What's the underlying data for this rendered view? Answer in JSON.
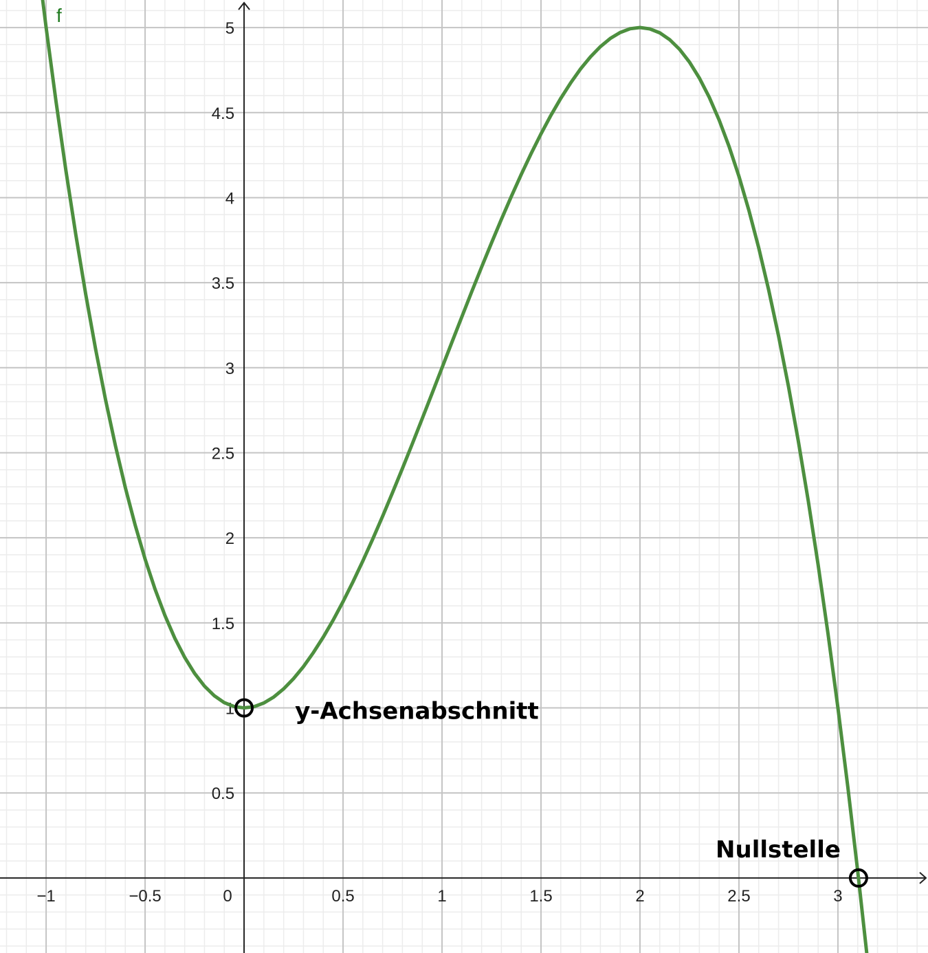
{
  "chart_data": {
    "type": "line",
    "x": [
      -1.05,
      -1,
      -0.95,
      -0.9,
      -0.85,
      -0.8,
      -0.75,
      -0.7,
      -0.65,
      -0.6,
      -0.55,
      -0.5,
      -0.45,
      -0.4,
      -0.35,
      -0.3,
      -0.25,
      -0.2,
      -0.15,
      -0.1,
      -0.05,
      0,
      0.05,
      0.1,
      0.15,
      0.2,
      0.25,
      0.3,
      0.35,
      0.4,
      0.45,
      0.5,
      0.55,
      0.6,
      0.65,
      0.7,
      0.75,
      0.8,
      0.85,
      0.9,
      0.95,
      1,
      1.05,
      1.1,
      1.15,
      1.2,
      1.25,
      1.3,
      1.35,
      1.4,
      1.45,
      1.5,
      1.55,
      1.6,
      1.65,
      1.7,
      1.75,
      1.8,
      1.85,
      1.9,
      1.95,
      2,
      2.05,
      2.1,
      2.15,
      2.2,
      2.25,
      2.3,
      2.35,
      2.4,
      2.45,
      2.5,
      2.55,
      2.6,
      2.65,
      2.7,
      2.75,
      2.8,
      2.85,
      2.9,
      2.95,
      3,
      3.05,
      3.1,
      3.15
    ],
    "series": [
      {
        "name": "f",
        "color": "#4d8f3f",
        "values": [
          5.465,
          5,
          4.565,
          4.159,
          3.782,
          3.432,
          3.109,
          2.813,
          2.542,
          2.296,
          2.074,
          1.875,
          1.699,
          1.544,
          1.41,
          1.297,
          1.203,
          1.128,
          1.071,
          1.031,
          1.008,
          1,
          1.007,
          1.029,
          1.064,
          1.112,
          1.172,
          1.243,
          1.325,
          1.416,
          1.516,
          1.625,
          1.741,
          1.864,
          1.993,
          2.127,
          2.266,
          2.408,
          2.553,
          2.701,
          2.85,
          3,
          3.15,
          3.299,
          3.447,
          3.592,
          3.734,
          3.873,
          4.007,
          4.136,
          4.259,
          4.375,
          4.484,
          4.584,
          4.675,
          4.757,
          4.828,
          4.888,
          4.936,
          4.971,
          4.993,
          5,
          4.992,
          4.969,
          4.929,
          4.872,
          4.797,
          4.703,
          4.59,
          4.456,
          4.301,
          4.125,
          3.926,
          3.704,
          3.458,
          3.187,
          2.891,
          2.568,
          2.218,
          1.841,
          1.435,
          1,
          0.535,
          0.039,
          -0.489
        ]
      }
    ],
    "xlim": [
      -1.233,
      3.455
    ],
    "ylim": [
      -0.441,
      5.162
    ],
    "xticks": [
      {
        "value": -1,
        "label": "−1"
      },
      {
        "value": -0.5,
        "label": "−0.5"
      },
      0,
      0.5,
      1,
      1.5,
      2,
      2.5,
      3
    ],
    "yticks": [
      0.5,
      1,
      1.5,
      2,
      2.5,
      3,
      3.5,
      4,
      4.5,
      5
    ],
    "grid": true,
    "minor_grid_divisions": 5,
    "points": [
      {
        "label": "y-Achsenabschnitt",
        "x": 0,
        "y": 1
      },
      {
        "label": "Nullstelle",
        "x": 3.104,
        "y": 0
      }
    ]
  }
}
